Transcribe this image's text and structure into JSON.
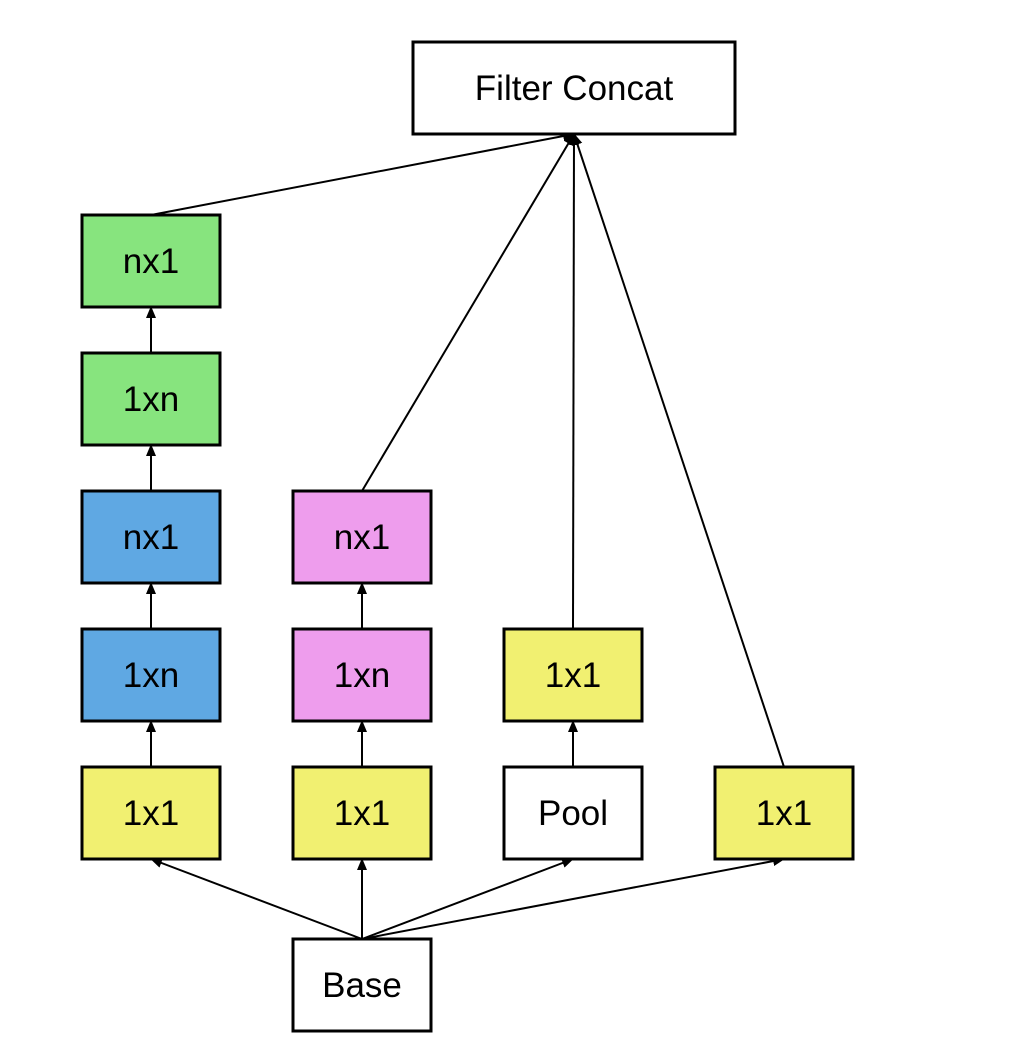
{
  "colors": {
    "white": "#ffffff",
    "green": "#87e47e",
    "blue": "#5fa8e3",
    "pink": "#ee9ded",
    "yellow": "#f1f071",
    "stroke": "#000000"
  },
  "nodes": {
    "filter_concat": {
      "label": "Filter Concat",
      "color": "white"
    },
    "b1_nx1_top": {
      "label": "nx1",
      "color": "green"
    },
    "b1_1xn_top": {
      "label": "1xn",
      "color": "green"
    },
    "b1_nx1_mid": {
      "label": "nx1",
      "color": "blue"
    },
    "b1_1xn_mid": {
      "label": "1xn",
      "color": "blue"
    },
    "b1_1x1": {
      "label": "1x1",
      "color": "yellow"
    },
    "b2_nx1": {
      "label": "nx1",
      "color": "pink"
    },
    "b2_1xn": {
      "label": "1xn",
      "color": "pink"
    },
    "b2_1x1": {
      "label": "1x1",
      "color": "yellow"
    },
    "b3_1x1": {
      "label": "1x1",
      "color": "yellow"
    },
    "b3_pool": {
      "label": "Pool",
      "color": "white"
    },
    "b4_1x1": {
      "label": "1x1",
      "color": "yellow"
    },
    "base": {
      "label": "Base",
      "color": "white"
    }
  },
  "edges": [
    {
      "from": "base",
      "to": "b1_1x1"
    },
    {
      "from": "base",
      "to": "b2_1x1"
    },
    {
      "from": "base",
      "to": "b3_pool"
    },
    {
      "from": "base",
      "to": "b4_1x1"
    },
    {
      "from": "b1_1x1",
      "to": "b1_1xn_mid"
    },
    {
      "from": "b1_1xn_mid",
      "to": "b1_nx1_mid"
    },
    {
      "from": "b1_nx1_mid",
      "to": "b1_1xn_top"
    },
    {
      "from": "b1_1xn_top",
      "to": "b1_nx1_top"
    },
    {
      "from": "b1_nx1_top",
      "to": "filter_concat"
    },
    {
      "from": "b2_1x1",
      "to": "b2_1xn"
    },
    {
      "from": "b2_1xn",
      "to": "b2_nx1"
    },
    {
      "from": "b2_nx1",
      "to": "filter_concat"
    },
    {
      "from": "b3_pool",
      "to": "b3_1x1"
    },
    {
      "from": "b3_1x1",
      "to": "filter_concat"
    },
    {
      "from": "b4_1x1",
      "to": "filter_concat"
    }
  ]
}
